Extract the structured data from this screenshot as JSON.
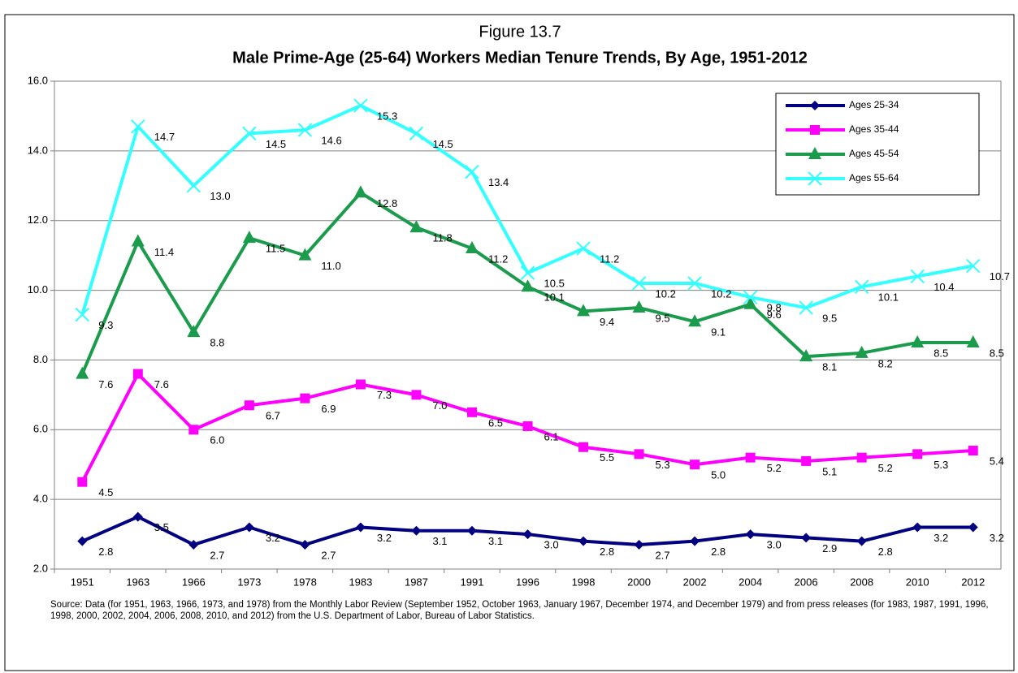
{
  "chart_data": {
    "type": "line",
    "title": "Figure 13.7",
    "subtitle": "Male Prime-Age (25-64) Workers Median Tenure Trends, By Age, 1951-2012",
    "categories": [
      "1951",
      "1963",
      "1966",
      "1973",
      "1978",
      "1983",
      "1987",
      "1991",
      "1996",
      "1998",
      "2000",
      "2002",
      "2004",
      "2006",
      "2008",
      "2010",
      "2012"
    ],
    "series": [
      {
        "name": "Ages 25-34",
        "color": "#000080",
        "marker": "diamond",
        "values": [
          2.8,
          3.5,
          2.7,
          3.2,
          2.7,
          3.2,
          3.1,
          3.1,
          3.0,
          2.8,
          2.7,
          2.8,
          3.0,
          2.9,
          2.8,
          3.2,
          3.2
        ],
        "value_labels": [
          "2.8",
          "3.5",
          "2.7",
          "3.2",
          "2.7",
          "3.2",
          "3.1",
          "3.1",
          "3.0",
          "2.8",
          "2.7",
          "2.8",
          "3.0",
          "2.9",
          "2.8",
          "3.2",
          "3.2"
        ]
      },
      {
        "name": "Ages 35-44",
        "color": "#ff00ff",
        "marker": "square",
        "values": [
          4.5,
          7.6,
          6.0,
          6.7,
          6.9,
          7.3,
          7.0,
          6.5,
          6.1,
          5.5,
          5.3,
          5.0,
          5.2,
          5.1,
          5.2,
          5.3,
          5.4
        ],
        "value_labels": [
          "4.5",
          "7.6",
          "6.0",
          "6.7",
          "6.9",
          "7.3",
          "7.0",
          "6.5",
          "6.1",
          "5.5",
          "5.3",
          "5.0",
          "5.2",
          "5.1",
          "5.2",
          "5.3",
          "5.4"
        ]
      },
      {
        "name": "Ages 45-54",
        "color": "#1a9c4c",
        "marker": "triangle",
        "values": [
          7.6,
          11.4,
          8.8,
          11.5,
          11.0,
          12.8,
          11.8,
          11.2,
          10.1,
          9.4,
          9.5,
          9.1,
          9.6,
          8.1,
          8.2,
          8.5,
          8.5
        ],
        "value_labels": [
          "7.6",
          "11.4",
          "8.8",
          "11.5",
          "11.0",
          "12.8",
          "11.8",
          "11.2",
          "10.1",
          "9.4",
          "9.5",
          "9.1",
          "9.6",
          "8.1",
          "8.2",
          "8.5",
          "8.5"
        ]
      },
      {
        "name": "Ages 55-64",
        "color": "#33ffff",
        "marker": "x",
        "values": [
          9.3,
          14.7,
          13.0,
          14.5,
          14.6,
          15.3,
          14.5,
          13.4,
          10.5,
          11.2,
          10.2,
          10.2,
          9.8,
          9.5,
          10.1,
          10.4,
          10.7
        ],
        "value_labels": [
          "9.3",
          "14.7",
          "13.0",
          "14.5",
          "14.6",
          "15.3",
          "14.5",
          "13.4",
          "10.5",
          "11.2",
          "10.2",
          "10.2",
          "9.8",
          "9.5",
          "10.1",
          "10.4",
          "10.7"
        ]
      }
    ],
    "ylim": [
      2,
      16
    ],
    "yticks": [
      {
        "value": 2,
        "label": "2.0"
      },
      {
        "value": 4,
        "label": "4.0"
      },
      {
        "value": 6,
        "label": "6.0"
      },
      {
        "value": 8,
        "label": "8.0"
      },
      {
        "value": 10,
        "label": "10.0"
      },
      {
        "value": 12,
        "label": "12.0"
      },
      {
        "value": 14,
        "label": "14.0"
      },
      {
        "value": 16,
        "label": "16.0"
      }
    ],
    "grid": true,
    "legend": "upper right",
    "source": "Source:  Data (for 1951, 1963, 1966, 1973, and 1978) from the Monthly Labor Review (September 1952, October 1963, January 1967, December 1974, and December 1979) and from press releases (for 1983, 1987, 1991, 1996, 1998, 2000, 2002, 2004, 2006, 2008, 2010, and 2012) from the U.S. Department of Labor, Bureau of Labor Statistics."
  }
}
